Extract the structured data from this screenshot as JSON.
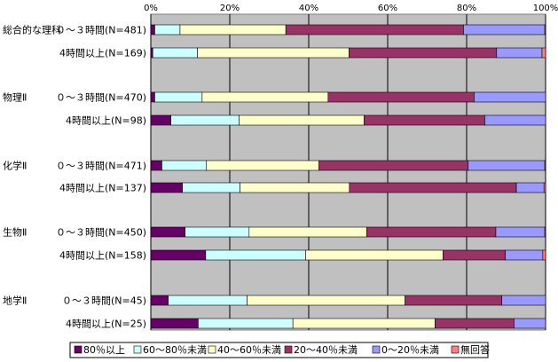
{
  "chart_data": {
    "type": "bar",
    "stacked": true,
    "orientation": "horizontal",
    "xlim": [
      0,
      100
    ],
    "x_ticks": [
      "0%",
      "20%",
      "40%",
      "60%",
      "80%",
      "100%"
    ],
    "grid": true,
    "legend_position": "bottom",
    "series_names": [
      "80％以上",
      "60～80％未満",
      "40～60％未満",
      "20～40％未満",
      "0～20％未満",
      "無回答"
    ],
    "series_colors": [
      "#660066",
      "#ccffff",
      "#ffffcc",
      "#993366",
      "#9999ff",
      "#ff8080"
    ],
    "groups": [
      {
        "subject": "総合的な理科",
        "rows": [
          {
            "label": "０～３時間(N=481)",
            "values": [
              1.0,
              6.4,
              26.8,
              45.0,
              20.6,
              0.2
            ]
          },
          {
            "label": "4時間以上(N=169)",
            "values": [
              0.5,
              11.3,
              38.4,
              37.4,
              11.5,
              0.9
            ]
          }
        ]
      },
      {
        "subject": "物理Ⅱ",
        "rows": [
          {
            "label": "０～３時間(N=470)",
            "values": [
              1.0,
              12.0,
              31.9,
              37.0,
              18.1,
              0.0
            ]
          },
          {
            "label": "4時間以上(N=98)",
            "values": [
              5.1,
              17.3,
              31.6,
              30.6,
              15.4,
              0.0
            ]
          }
        ]
      },
      {
        "subject": "化学Ⅱ",
        "rows": [
          {
            "label": "０～３時間(N=471)",
            "values": [
              2.8,
              11.3,
              28.5,
              37.8,
              19.4,
              0.2
            ]
          },
          {
            "label": "4時間以上(N=137)",
            "values": [
              8.0,
              14.6,
              27.7,
              42.3,
              7.0,
              0.4
            ]
          }
        ]
      },
      {
        "subject": "生物Ⅱ",
        "rows": [
          {
            "label": "０～３時間(N=450)",
            "values": [
              8.7,
              16.2,
              29.8,
              32.7,
              12.4,
              0.2
            ]
          },
          {
            "label": "4時間以上(N=158)",
            "values": [
              13.9,
              25.3,
              34.8,
              15.8,
              9.5,
              0.7
            ]
          }
        ]
      },
      {
        "subject": "地学Ⅱ",
        "rows": [
          {
            "label": "０～３時間(N=45)",
            "values": [
              4.4,
              20.0,
              40.0,
              24.5,
              11.1,
              0.0
            ]
          },
          {
            "label": "4時間以上(N=25)",
            "values": [
              12.0,
              24.0,
              36.0,
              20.0,
              8.0,
              0.0
            ]
          }
        ]
      }
    ]
  }
}
